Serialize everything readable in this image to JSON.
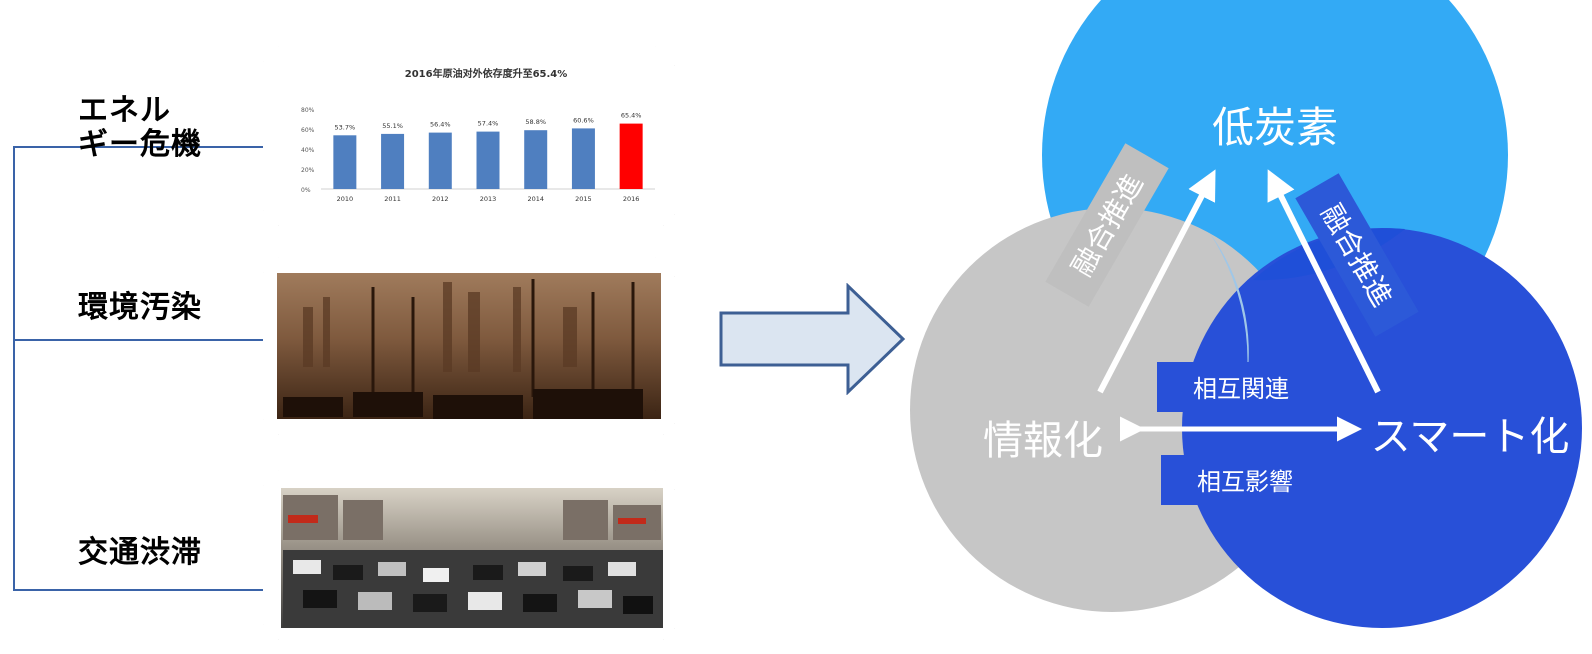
{
  "issues": [
    {
      "line1": "エネル",
      "line2": "ギー危機"
    },
    {
      "label": "環境汚染"
    },
    {
      "label": "交通渋滞"
    }
  ],
  "chart_data": {
    "type": "bar",
    "title": "2016年原油对外依存度升至65.4%",
    "categories": [
      "2010",
      "2011",
      "2012",
      "2013",
      "2014",
      "2015",
      "2016"
    ],
    "values": [
      53.7,
      55.1,
      56.4,
      57.4,
      58.8,
      60.6,
      65.4
    ],
    "data_labels": [
      "53.7%",
      "55.1%",
      "56.4%",
      "57.4%",
      "58.8%",
      "60.6%",
      "65.4%"
    ],
    "yticks": [
      "0%",
      "20%",
      "40%",
      "60%",
      "80%"
    ],
    "ylim": [
      0,
      80
    ],
    "colors": {
      "normal": "#4f7fc0",
      "highlight": "#ff0000"
    },
    "highlight_index": 6
  },
  "venn": {
    "top": "低炭素",
    "left": "情報化",
    "right": "スマート化",
    "tag_left": "融合推進",
    "tag_right": "融合推進",
    "mid_top": "相互関連",
    "mid_bottom": "相互影響",
    "colors": {
      "top": "#33aaf5",
      "left": "#c6c6c6",
      "right": "#2850d8"
    }
  }
}
